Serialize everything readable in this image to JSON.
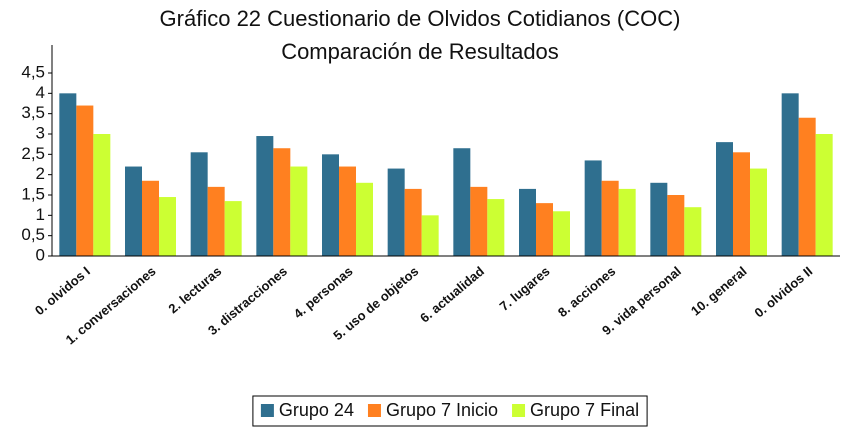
{
  "chart_data": {
    "type": "bar",
    "title": "Gráfico 22 Cuestionario de Olvidos Cotidianos (COC)",
    "subtitle": "Comparación de Resultados",
    "categories": [
      "0. olvidos I",
      "1. conversaciones",
      "2. lecturas",
      "3. distracciones",
      "4. personas",
      "5. uso de objetos",
      "6. actualidad",
      "7. lugares",
      "8. acciones",
      "9. vida personal",
      "10. general",
      "0. olvidos II"
    ],
    "series": [
      {
        "name": "Grupo 24",
        "color": "#2f6f8f",
        "values": [
          4.0,
          2.2,
          2.55,
          2.95,
          2.5,
          2.15,
          2.65,
          1.65,
          2.35,
          1.8,
          2.8,
          4.0
        ]
      },
      {
        "name": "Grupo 7 Inicio",
        "color": "#ff8020",
        "values": [
          3.7,
          1.85,
          1.7,
          2.65,
          2.2,
          1.65,
          1.7,
          1.3,
          1.85,
          1.5,
          2.55,
          3.4
        ]
      },
      {
        "name": "Grupo 7 Final",
        "color": "#ccff33",
        "values": [
          3.0,
          1.45,
          1.35,
          2.2,
          1.8,
          1.0,
          1.4,
          1.1,
          1.65,
          1.2,
          2.15,
          3.0
        ]
      }
    ],
    "ylim": [
      0,
      4.5
    ],
    "yticks": [
      0,
      {
        "value": 0.5,
        "label": "0,5"
      },
      1,
      {
        "value": 1.5,
        "label": "1,5"
      },
      2,
      {
        "value": 2.5,
        "label": "2,5"
      },
      3,
      {
        "value": 3.5,
        "label": "3,5"
      },
      4,
      {
        "value": 4.5,
        "label": "4,5"
      }
    ],
    "grid": false,
    "legend": "bottom"
  }
}
